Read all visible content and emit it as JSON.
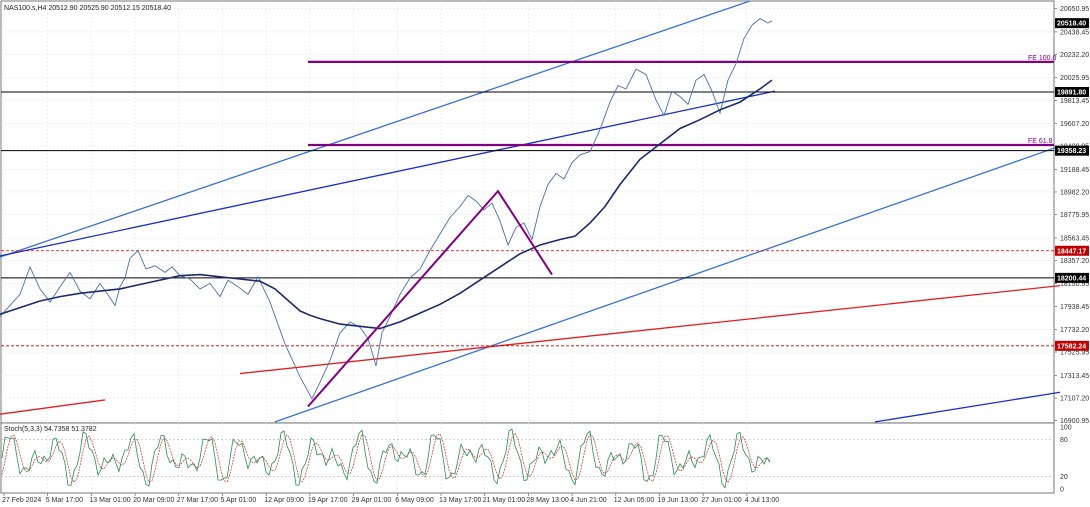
{
  "chart_data": {
    "type": "line",
    "title": "NAS100.s,H4  20512.90 20525.90 20512.15 20518.40",
    "symbol": "NAS100.s,H4",
    "ohlc": {
      "open": "20512.90",
      "high": "20525.90",
      "low": "20512.15",
      "close": "20518.40"
    },
    "price_axis": {
      "ticks": [
        "20650.95",
        "20438.45",
        "20232.20",
        "20025.95",
        "19813.45",
        "19607.20",
        "19400.95",
        "19188.45",
        "18982.20",
        "18775.95",
        "18563.45",
        "18357.20",
        "18150.95",
        "17938.45",
        "17732.20",
        "17525.95",
        "17313.45",
        "17107.20",
        "16900.95"
      ],
      "range": [
        16880,
        20720
      ]
    },
    "time_axis": {
      "ticks": [
        "27 Feb 2024",
        "5 Mar 17:00",
        "13 Mar 01:00",
        "20 Mar 09:00",
        "27 Mar 17:00",
        "5 Apr 01:00",
        "12 Apr 09:00",
        "19 Apr 17:00",
        "29 Apr 01:00",
        "6 May 09:00",
        "13 May 17:00",
        "21 May 01:00",
        "28 May 13:00",
        "4 Jun 21:00",
        "12 Jun 05:00",
        "19 Jun 13:00",
        "27 Jun 01:00",
        "4 Jul 13:00"
      ]
    },
    "series": [
      {
        "kind": "price",
        "color": "#4a6fa5",
        "x": [
          0,
          10,
          20,
          30,
          40,
          50,
          60,
          70,
          80,
          90,
          100,
          110,
          115,
          120,
          125,
          130,
          138,
          146,
          155,
          165,
          172,
          180,
          190,
          200,
          210,
          220,
          228,
          238,
          248,
          258,
          270,
          285,
          300,
          312,
          320,
          330,
          340,
          350,
          360,
          368,
          376,
          382,
          390,
          400,
          410,
          420,
          430,
          440,
          450,
          460,
          468,
          476,
          484,
          492,
          500,
          508,
          516,
          524,
          532,
          540,
          548,
          556,
          564,
          572,
          580,
          590,
          600,
          610,
          618,
          626,
          636,
          646,
          656,
          664,
          672,
          680,
          688,
          696,
          704,
          712,
          720,
          728,
          736,
          744,
          752,
          760,
          768,
          772
        ],
        "y": [
          17850,
          17950,
          18050,
          18300,
          18100,
          17980,
          18120,
          18250,
          18080,
          18010,
          18150,
          18020,
          17950,
          18120,
          18200,
          18380,
          18450,
          18280,
          18310,
          18250,
          18300,
          18220,
          18190,
          18100,
          18150,
          18030,
          18180,
          18120,
          18050,
          18210,
          17980,
          17600,
          17300,
          17100,
          17250,
          17450,
          17700,
          17800,
          17750,
          17650,
          17400,
          17700,
          17850,
          18050,
          18200,
          18280,
          18450,
          18600,
          18750,
          18850,
          18950,
          18900,
          18820,
          18880,
          18720,
          18500,
          18660,
          18700,
          18550,
          18850,
          19050,
          19150,
          19100,
          19250,
          19320,
          19350,
          19550,
          19800,
          19950,
          19920,
          20100,
          20050,
          19820,
          19680,
          19900,
          19850,
          19780,
          20000,
          20050,
          19900,
          19700,
          20000,
          20150,
          20380,
          20500,
          20560,
          20520,
          20540
        ]
      },
      {
        "kind": "moving-average",
        "color": "#1a2a6c",
        "x": [
          0,
          20,
          40,
          60,
          80,
          100,
          120,
          140,
          160,
          180,
          200,
          220,
          240,
          260,
          275,
          290,
          300,
          310,
          320,
          340,
          360,
          380,
          400,
          420,
          440,
          460,
          480,
          500,
          520,
          540,
          560,
          575,
          590,
          605,
          620,
          640,
          660,
          680,
          700,
          720,
          740,
          760,
          772
        ],
        "y": [
          17870,
          17930,
          17990,
          18030,
          18060,
          18080,
          18100,
          18140,
          18180,
          18220,
          18230,
          18210,
          18190,
          18170,
          18100,
          17980,
          17900,
          17860,
          17830,
          17780,
          17760,
          17740,
          17800,
          17880,
          17960,
          18060,
          18180,
          18300,
          18420,
          18500,
          18550,
          18580,
          18700,
          18850,
          19050,
          19280,
          19420,
          19560,
          19640,
          19730,
          19800,
          19920,
          20000
        ]
      }
    ],
    "horizontal_levels": [
      {
        "value": 19891.8,
        "label": "19891.80",
        "style": "solid",
        "color": "#000000"
      },
      {
        "value": 19358.23,
        "label": "19358.23",
        "style": "solid",
        "color": "#000000"
      },
      {
        "value": 18200.44,
        "label": "18200.44",
        "style": "solid",
        "color": "#000000"
      },
      {
        "value": 18447.17,
        "label": "18447.17",
        "style": "dashed",
        "color": "#c00000"
      },
      {
        "value": 17582.24,
        "label": "17582.24",
        "style": "dashed",
        "color": "#c00000"
      }
    ],
    "fibonacci_levels": [
      {
        "label": "FE 100.0",
        "value": 20166,
        "color": "#800080"
      },
      {
        "label": "FE 61.8",
        "value": 19410,
        "color": "#800080"
      }
    ],
    "current_price": {
      "value": 20518.4,
      "label": "20518.40"
    },
    "trend_lines": [
      {
        "color": "#3a6fd8",
        "from": [
          0,
          18390
        ],
        "to": [
          750,
          20720
        ]
      },
      {
        "color": "#1a30c8",
        "from": [
          0,
          18400
        ],
        "to": [
          775,
          19900
        ]
      },
      {
        "color": "#3a6fd8",
        "from": [
          275,
          16890
        ],
        "to": [
          1060,
          19400
        ]
      },
      {
        "color": "#1a30c8",
        "from": [
          875,
          16890
        ],
        "to": [
          1060,
          17160
        ]
      },
      {
        "color": "#e02020",
        "from": [
          240,
          17330
        ],
        "to": [
          1060,
          18130
        ]
      },
      {
        "color": "#e02020",
        "from": [
          0,
          16960
        ],
        "to": [
          105,
          17090
        ]
      }
    ],
    "zigzag": {
      "color": "#800080",
      "x": [
        308,
        498,
        552
      ],
      "y": [
        17030,
        18990,
        18230
      ]
    },
    "oscillator": {
      "title": "Stoch(5,3,3) 54.7358 51.3782",
      "ticks": [
        "100",
        "80",
        "20",
        "0"
      ],
      "range": [
        0,
        100
      ],
      "main_color": "#2e8b57",
      "signal_color": "#c03030"
    }
  }
}
